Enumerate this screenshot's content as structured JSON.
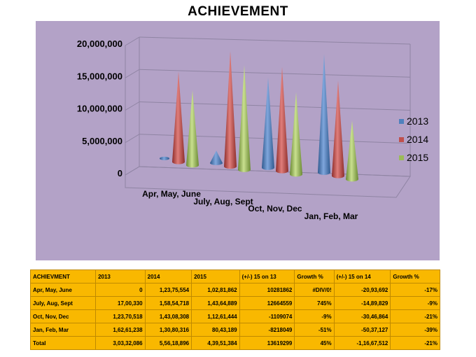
{
  "title": "ACHIEVEMENT",
  "chart_data": {
    "type": "bar",
    "title": "ACHIEVEMENT",
    "categories": [
      "Apr, May, June",
      "July, Aug, Sept",
      "Oct, Nov, Dec",
      "Jan, Feb, Mar"
    ],
    "series": [
      {
        "name": "2013",
        "color": "#4f81bd",
        "values": [
          0,
          1700330,
          12370518,
          16261238
        ]
      },
      {
        "name": "2014",
        "color": "#c0504d",
        "values": [
          12375554,
          15854718,
          14308308,
          13080316
        ]
      },
      {
        "name": "2015",
        "color": "#9bbb59",
        "values": [
          10281862,
          14364889,
          11261444,
          8043189
        ]
      }
    ],
    "ylim": [
      0,
      20000000
    ],
    "yticks": [
      "0",
      "5,000,000",
      "10,000,000",
      "15,000,000",
      "20,000,000"
    ],
    "grid": true,
    "legend_position": "right",
    "shape": "cone-3d"
  },
  "table": {
    "headers": [
      "ACHIEVMENT",
      "2013",
      "2014",
      "2015",
      "(+/-) 15 on 13",
      "Growth %",
      "(+/-) 15 on 14",
      "Growth %"
    ],
    "rows": [
      [
        "Apr, May, June",
        "0",
        "1,23,75,554",
        "1,02,81,862",
        "10281862",
        "#DIV/0!",
        "-20,93,692",
        "-17%"
      ],
      [
        "July, Aug, Sept",
        "17,00,330",
        "1,58,54,718",
        "1,43,64,889",
        "12664559",
        "745%",
        "-14,89,829",
        "-9%"
      ],
      [
        "Oct, Nov, Dec",
        "1,23,70,518",
        "1,43,08,308",
        "1,12,61,444",
        "-1109074",
        "-9%",
        "-30,46,864",
        "-21%"
      ],
      [
        "Jan, Feb, Mar",
        "1,62,61,238",
        "1,30,80,316",
        "80,43,189",
        "-8218049",
        "-51%",
        "-50,37,127",
        "-39%"
      ],
      [
        "Total",
        "3,03,32,086",
        "5,56,18,896",
        "4,39,51,384",
        "13619299",
        "45%",
        "-1,16,67,512",
        "-21%"
      ]
    ]
  }
}
